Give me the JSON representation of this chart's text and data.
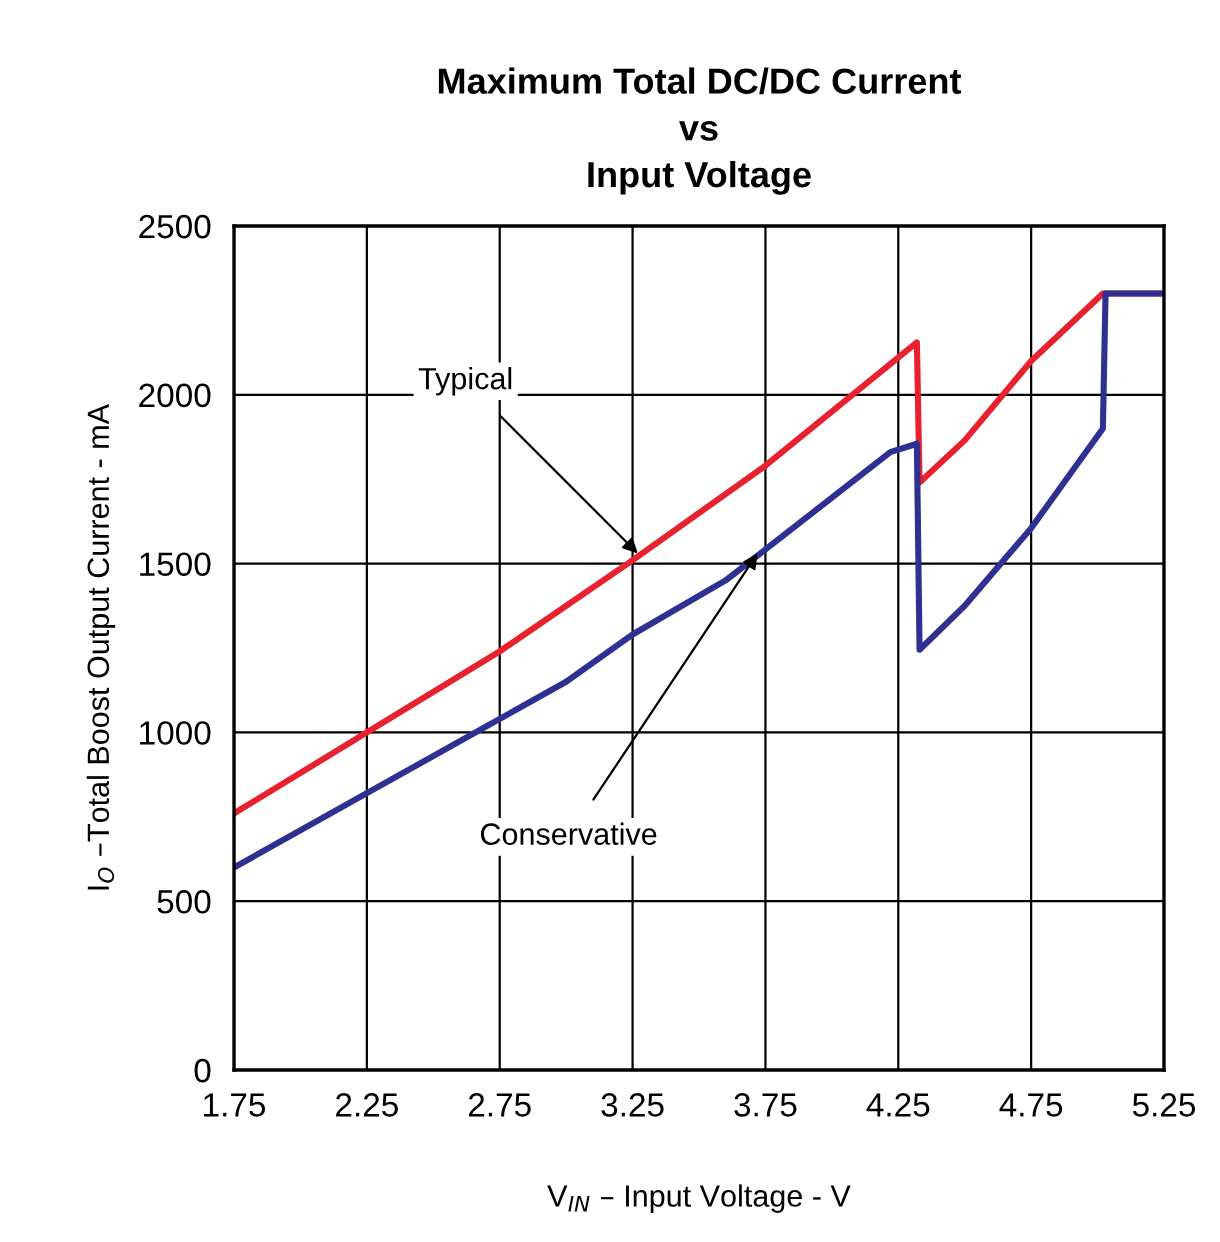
{
  "chart_data": {
    "type": "line",
    "title": "Maximum Total DC/DC Current\nvs\nInput Voltage",
    "xlabel": "V$_{IN}$ – Input Voltage - V",
    "ylabel": "I$_{O}$ –Total Boost Output Current - mA",
    "series": [
      {
        "color": "#e8212e",
        "x": [
          1.75,
          2.25,
          2.75,
          3.25,
          3.75,
          4.32,
          4.33,
          4.5,
          4.75,
          5.02,
          5.25
        ],
        "values": [
          760,
          1000,
          1240,
          1510,
          1790,
          2155,
          1740,
          1865,
          2100,
          2300,
          2300
        ]
      },
      {
        "color": "#2e3192",
        "x": [
          1.75,
          2.25,
          2.75,
          3.0,
          3.25,
          3.6,
          4.22,
          4.32,
          4.33,
          4.5,
          4.75,
          5.02,
          5.03,
          5.25
        ],
        "values": [
          600,
          820,
          1040,
          1150,
          1290,
          1450,
          1830,
          1855,
          1245,
          1375,
          1605,
          1900,
          2300,
          2300
        ]
      }
    ],
    "annotations": [
      {
        "text": "Typical",
        "x": 3.27,
        "y": 1530
      },
      {
        "text": "Conservative",
        "x": 3.72,
        "y": 1530
      }
    ],
    "xlim": [
      1.75,
      5.25
    ],
    "xticks": [
      1.75,
      2.25,
      2.75,
      3.25,
      3.75,
      4.25,
      4.75,
      5.25
    ],
    "ylim": [
      0,
      2500
    ],
    "yticks": [
      0,
      500,
      1000,
      1500,
      2000,
      2500
    ],
    "grid": true,
    "marker": "none",
    "line_style": "solid",
    "legend": false
  }
}
